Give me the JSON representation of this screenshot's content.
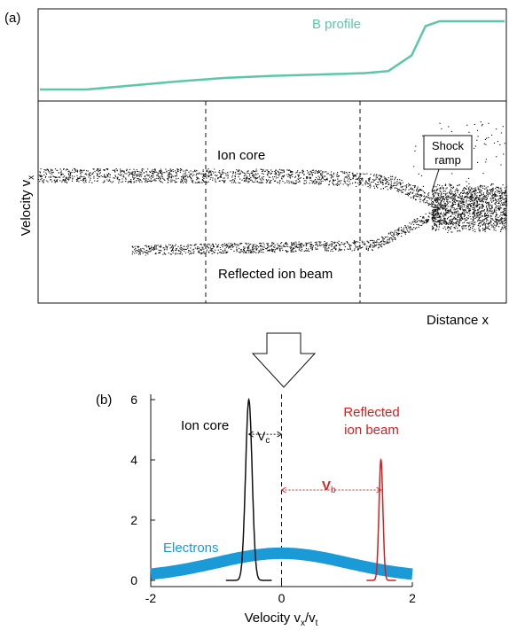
{
  "panel_a": {
    "label": "(a)",
    "b_profile_label": "B profile",
    "ylabel": "Velocity v",
    "ylabel_sub": "x",
    "xlabel": "Distance x",
    "ion_core_label": "Ion core",
    "reflected_label": "Reflected ion beam",
    "shock_label_line1": "Shock",
    "shock_label_line2": "ramp"
  },
  "panel_b": {
    "label": "(b)",
    "ion_core_label": "Ion core",
    "reflected_line1": "Reflected",
    "reflected_line2": "ion beam",
    "electrons_label": "Electrons",
    "vc_main": "V",
    "vc_sub": "c",
    "vb_main": "V",
    "vb_sub": "b",
    "xlabel_main": "Velocity v",
    "xlabel_sub1": "x",
    "xlabel_mid": "/v",
    "xlabel_sub2": "t"
  },
  "colors": {
    "b_profile": "#5cc6a8",
    "ion_core": "#111111",
    "reflected": "#d42020",
    "electrons": "#1a9ad6",
    "axis": "#111111"
  },
  "chart_data": [
    {
      "type": "line",
      "panel": "a-top",
      "series": [
        {
          "name": "B profile",
          "x": [
            0,
            0.1,
            0.2,
            0.3,
            0.4,
            0.5,
            0.6,
            0.7,
            0.75,
            0.8,
            0.83,
            0.86,
            0.9,
            1.0
          ],
          "y": [
            0.0,
            0.0,
            0.06,
            0.12,
            0.17,
            0.2,
            0.22,
            0.24,
            0.27,
            0.5,
            0.93,
            1.0,
            1.0,
            1.0
          ]
        }
      ]
    },
    {
      "type": "scatter",
      "panel": "a-bottom",
      "xlabel": "Distance x",
      "ylabel": "Velocity vx",
      "series": [
        {
          "name": "Ion core",
          "x_range": [
            0,
            1.0
          ],
          "y_start": 0.63,
          "y_end": 0.47
        },
        {
          "name": "Reflected ion beam",
          "x_range": [
            0.2,
            1.0
          ],
          "y_start": 0.26,
          "y_end": 0.44
        }
      ]
    },
    {
      "type": "line",
      "panel": "b",
      "xlabel": "Velocity vx/vt",
      "xlim": [
        -2,
        2
      ],
      "ylim": [
        0,
        6
      ],
      "xticks": [
        -2,
        0,
        2
      ],
      "yticks": [
        0,
        2,
        4,
        6
      ],
      "series": [
        {
          "name": "Ion core",
          "center": -0.5,
          "sigma": 0.05,
          "peak": 6.0
        },
        {
          "name": "Reflected ion beam",
          "center": 1.52,
          "sigma": 0.03,
          "peak": 4.0
        },
        {
          "name": "Electrons",
          "center": 0.0,
          "sigma": 1.0,
          "peak": 0.9,
          "floor": 0.1
        }
      ],
      "annotations": [
        {
          "text": "Vc",
          "from_x": -0.5,
          "to_x": 0.0,
          "y": 4.85
        },
        {
          "text": "Vb",
          "from_x": 0.0,
          "to_x": 1.52,
          "y": 3.0
        }
      ]
    }
  ]
}
